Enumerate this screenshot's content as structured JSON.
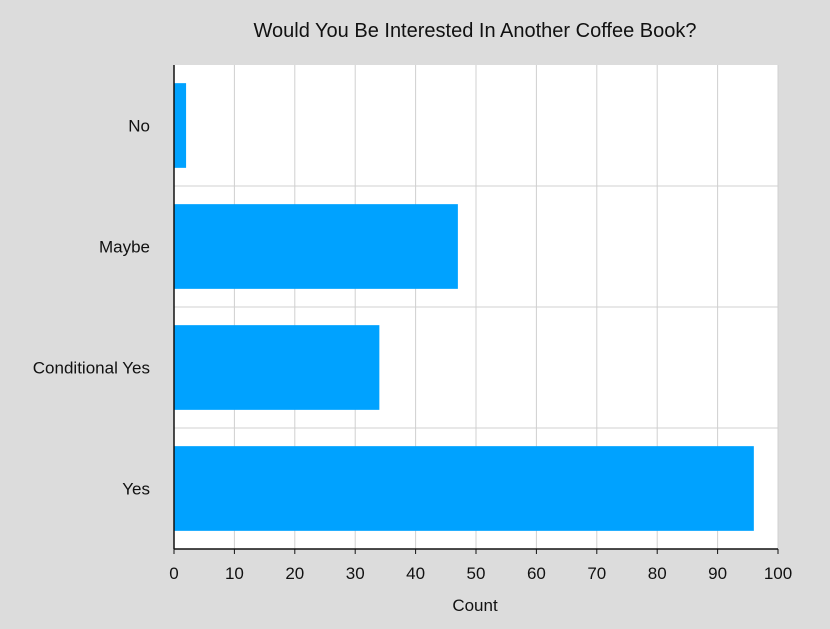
{
  "chart_data": {
    "type": "bar",
    "orientation": "horizontal",
    "title": "Would You Be Interested In Another Coffee Book?",
    "xlabel": "Count",
    "ylabel": "",
    "categories": [
      "No",
      "Maybe",
      "Conditional Yes",
      "Yes"
    ],
    "values": [
      2,
      47,
      34,
      96
    ],
    "xlim": [
      0,
      100
    ],
    "xticks": [
      0,
      10,
      20,
      30,
      40,
      50,
      60,
      70,
      80,
      90,
      100
    ],
    "grid": true,
    "legend": "none",
    "colors": {
      "bar": "#00a2ff",
      "plot_background": "#ffffff",
      "page_background": "#dcdcdc",
      "grid": "#d0d0d0",
      "axis": "#111111"
    }
  }
}
